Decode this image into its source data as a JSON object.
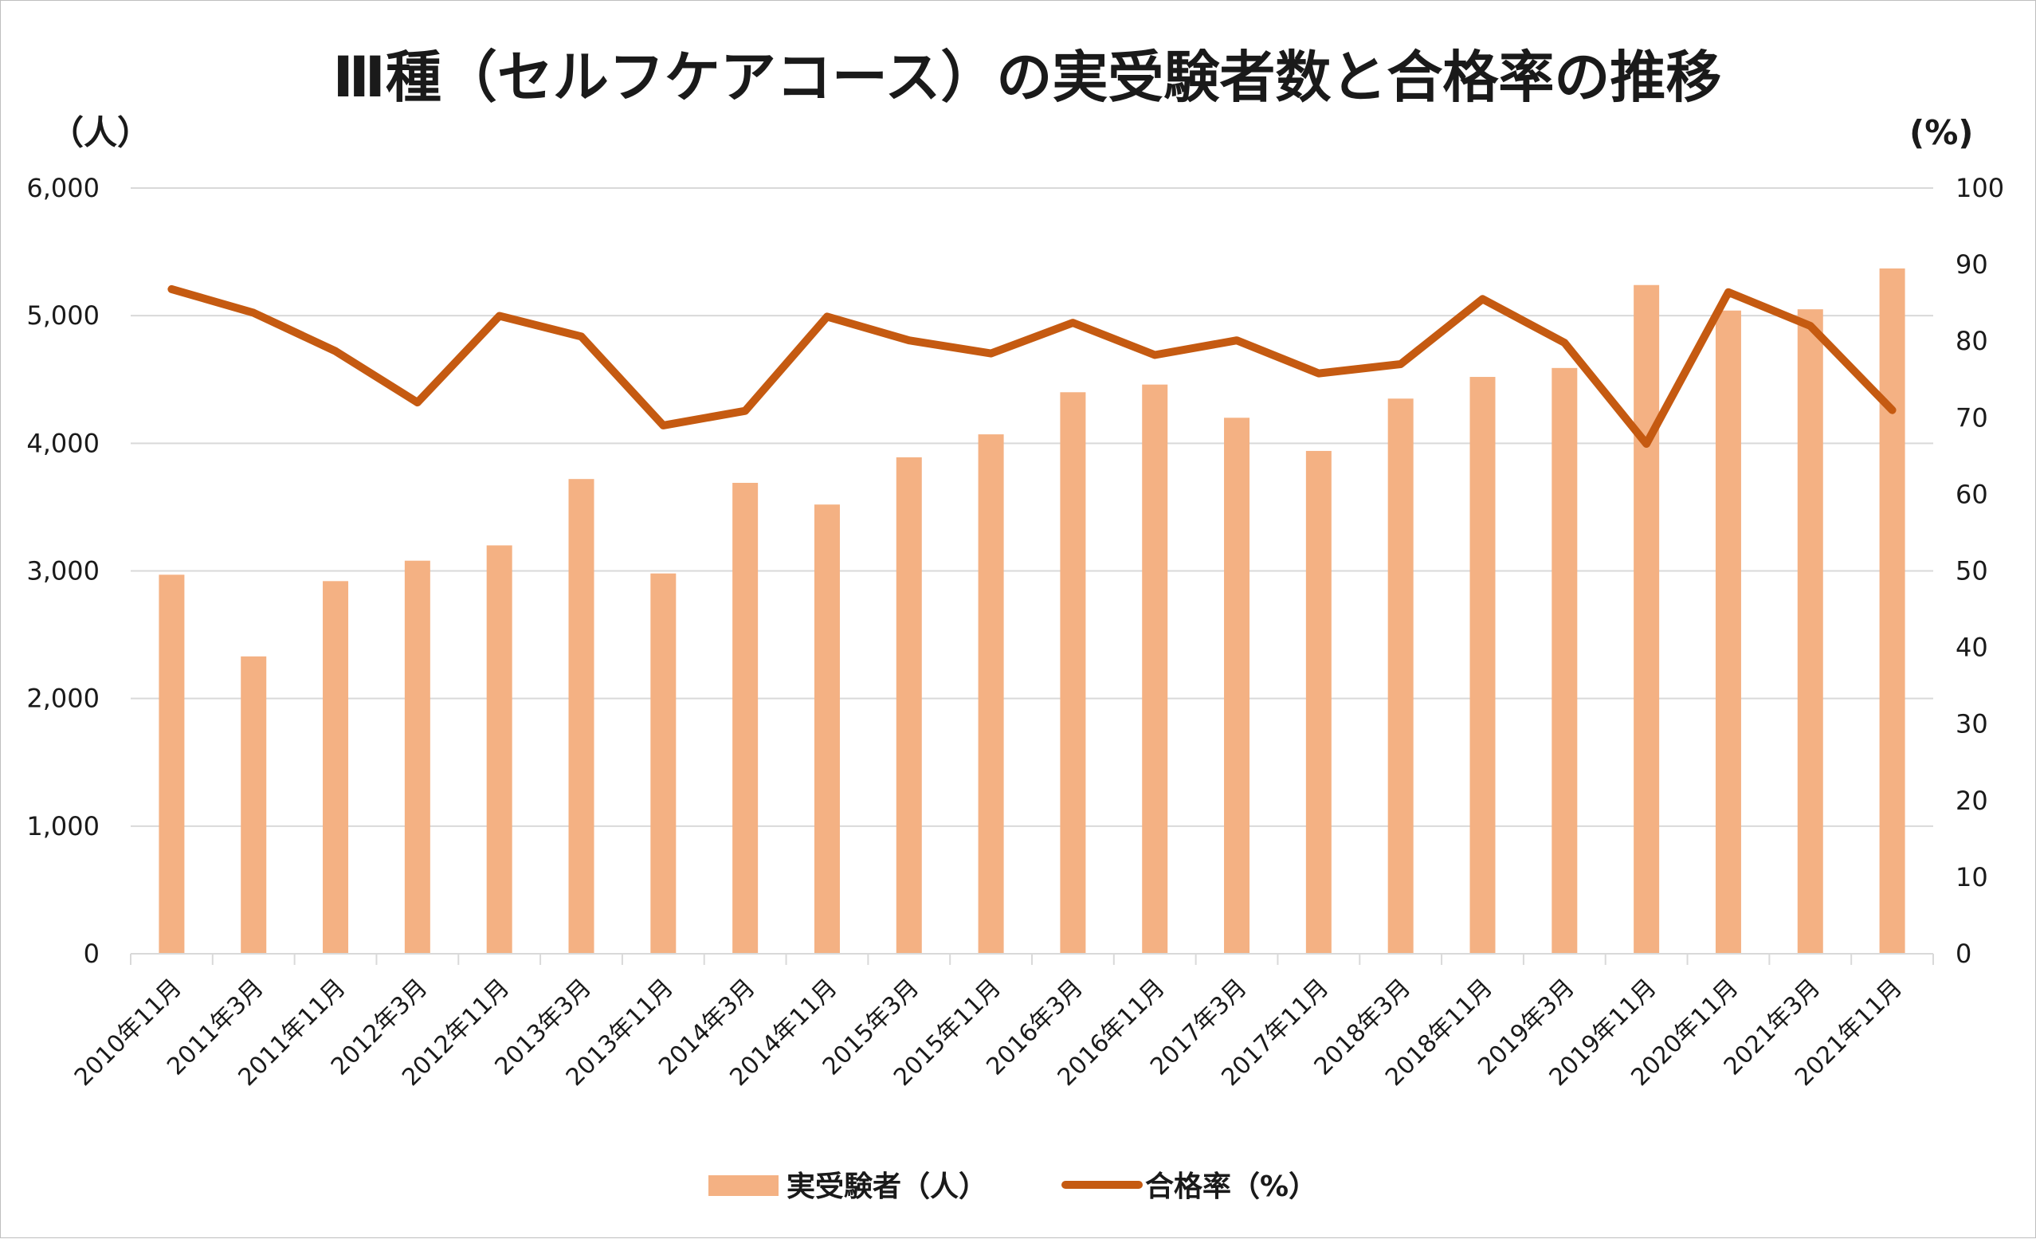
{
  "chart_data": {
    "type": "bar",
    "title": "Ⅲ種（セルフケアコース）の実受験者数と合格率の推移",
    "y_left_unit": "（人）",
    "y_right_unit": "(%)",
    "y_left_ticks": [
      "0",
      "1,000",
      "2,000",
      "3,000",
      "4,000",
      "5,000",
      "6,000"
    ],
    "y_right_ticks": [
      "0",
      "10",
      "20",
      "30",
      "40",
      "50",
      "60",
      "70",
      "80",
      "90",
      "100"
    ],
    "ylim_left": [
      0,
      6000
    ],
    "ylim_right": [
      0,
      100
    ],
    "grid": true,
    "legend_position": "bottom",
    "categories": [
      "2010年11月",
      "2011年3月",
      "2011年11月",
      "2012年3月",
      "2012年11月",
      "2013年3月",
      "2013年11月",
      "2014年3月",
      "2014年11月",
      "2015年3月",
      "2015年11月",
      "2016年3月",
      "2016年11月",
      "2017年3月",
      "2017年11月",
      "2018年3月",
      "2018年11月",
      "2019年3月",
      "2019年11月",
      "2020年11月",
      "2021年3月",
      "2021年11月"
    ],
    "series": [
      {
        "name": "実受験者（人）",
        "type": "bar",
        "axis": "left",
        "color": "#f4b183",
        "values": [
          2970,
          2330,
          2920,
          3080,
          3200,
          3720,
          2980,
          3690,
          3520,
          3890,
          4070,
          4400,
          4460,
          4200,
          3940,
          4350,
          4520,
          4590,
          5240,
          5040,
          5050,
          5370
        ]
      },
      {
        "name": "合格率（%）",
        "type": "line",
        "axis": "right",
        "color": "#c55a11",
        "values": [
          86.8,
          83.7,
          78.7,
          72.0,
          83.3,
          80.6,
          69.0,
          70.9,
          83.2,
          80.1,
          78.4,
          82.4,
          78.2,
          80.1,
          75.8,
          77.0,
          85.5,
          79.8,
          66.6,
          86.4,
          82.0,
          71.0
        ]
      }
    ]
  }
}
